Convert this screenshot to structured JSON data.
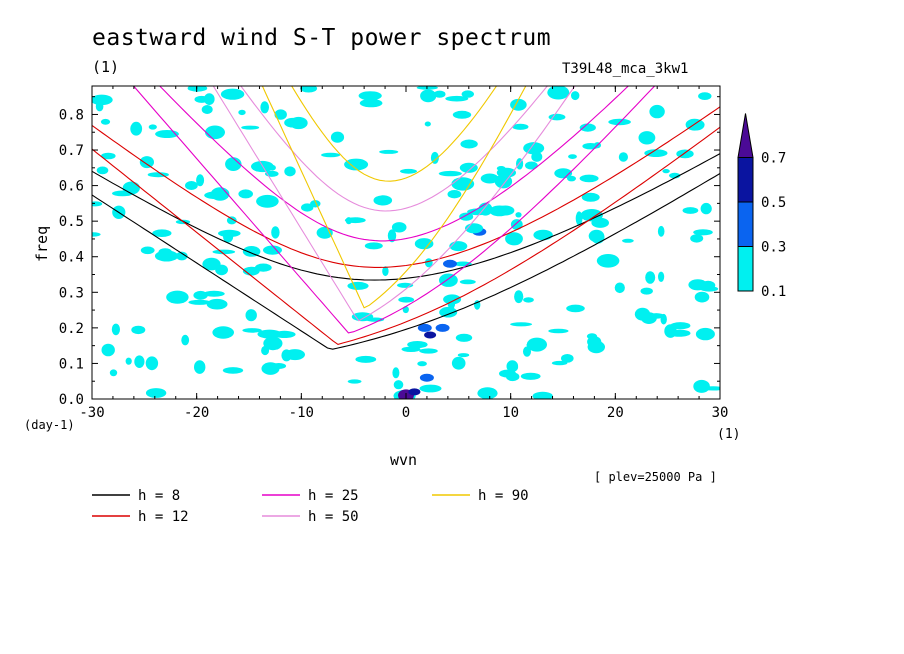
{
  "chart_data": {
    "type": "contour",
    "title": "eastward wind S-T power spectrum",
    "subtitle_left": "(1)",
    "subtitle_right": "T39L48_mca_3kw1",
    "xlabel": "wvn",
    "ylabel": "freq",
    "x_unit": "(1)",
    "y_unit": "(day-1)",
    "xlim": [
      -30,
      30
    ],
    "ylim": [
      0,
      0.88
    ],
    "x_ticks": [
      -30,
      -20,
      -10,
      0,
      10,
      20,
      30
    ],
    "x_tick_labels": [
      "-30",
      "-20",
      "-10",
      "0",
      "10",
      "20",
      "30"
    ],
    "y_ticks": [
      0,
      0.1,
      0.2,
      0.3,
      0.4,
      0.5,
      0.6,
      0.7,
      0.8
    ],
    "y_tick_labels": [
      "0.0",
      "0.1",
      "0.2",
      "0.3",
      "0.4",
      "0.5",
      "0.6",
      "0.7",
      "0.8"
    ],
    "note": "[ plev=25000 Pa ]",
    "colorbar": {
      "levels": [
        "0.1",
        "0.3",
        "0.5",
        "0.7"
      ],
      "colors": [
        "#00f0f0",
        "#0a64f0",
        "#0a14a0",
        "#4b0a96"
      ]
    },
    "contour_blobs": [
      {
        "x": 0,
        "y": 0.01,
        "level": 3
      },
      {
        "x": 0.8,
        "y": 0.02,
        "level": 2
      },
      {
        "x": 2,
        "y": 0.06,
        "level": 1
      },
      {
        "x": 2.3,
        "y": 0.18,
        "level": 2
      },
      {
        "x": 1.8,
        "y": 0.2,
        "level": 1
      },
      {
        "x": 3.5,
        "y": 0.2,
        "level": 1
      },
      {
        "x": 4.5,
        "y": 0.28,
        "level": 1
      },
      {
        "x": 4.4,
        "y": 0.28,
        "level": 0
      },
      {
        "x": 4.2,
        "y": 0.38,
        "level": 1
      },
      {
        "x": 5,
        "y": 0.43,
        "level": 0
      },
      {
        "x": 7,
        "y": 0.47,
        "level": 1
      },
      {
        "x": 6.5,
        "y": 0.48,
        "level": 0
      },
      {
        "x": 9.5,
        "y": 0.53,
        "level": 0
      },
      {
        "x": 8,
        "y": 0.62,
        "level": 0
      },
      {
        "x": 6,
        "y": 0.65,
        "level": 0
      }
    ],
    "dispersion_curves": [
      {
        "name": "h =  8",
        "color": "#000000",
        "eqdepth": 8
      },
      {
        "name": "h = 12",
        "color": "#dc0000",
        "eqdepth": 12
      },
      {
        "name": "h = 25",
        "color": "#e600c8",
        "eqdepth": 25
      },
      {
        "name": "h = 50",
        "color": "#e68cdc",
        "eqdepth": 50
      },
      {
        "name": "h = 90",
        "color": "#f0c800",
        "eqdepth": 90
      }
    ]
  },
  "legend": {
    "items": [
      {
        "label": "h =  8",
        "color": "#000000"
      },
      {
        "label": "h = 12",
        "color": "#dc0000"
      },
      {
        "label": "h = 25",
        "color": "#e600c8"
      },
      {
        "label": "h = 50",
        "color": "#e68cdc"
      },
      {
        "label": "h = 90",
        "color": "#f0c800"
      }
    ]
  }
}
